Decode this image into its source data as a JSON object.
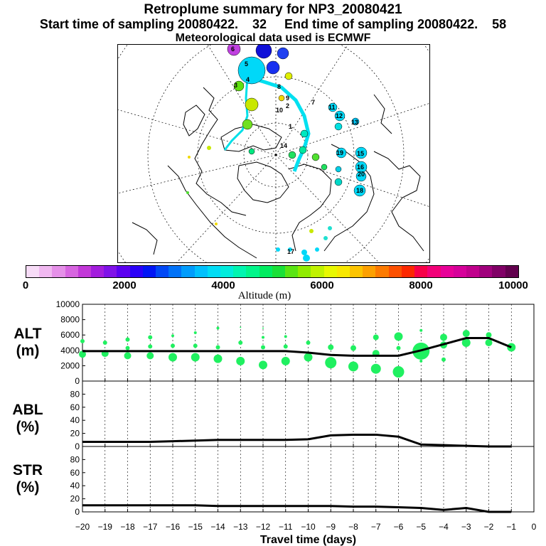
{
  "title": {
    "line1": "Retroplume summary for NP3_20080421",
    "line2": "Start time of sampling 20080422.    32     End time of sampling 20080422.    58",
    "line3": "Meteorological data used is ECMWF"
  },
  "colorbar": {
    "colors": [
      "#f7dcf7",
      "#f0b8f0",
      "#e590e8",
      "#d765e0",
      "#c238d8",
      "#a31ddd",
      "#8012e8",
      "#5c00f0",
      "#2a00f8",
      "#0015f5",
      "#0048f5",
      "#0072f8",
      "#009cfc",
      "#00c0fd",
      "#00dcf5",
      "#00ecdc",
      "#00f5b0",
      "#00f58a",
      "#00ec60",
      "#1ae038",
      "#5ae414",
      "#90ec00",
      "#c0f200",
      "#e8f800",
      "#f8e800",
      "#fcc400",
      "#fca000",
      "#fc7a00",
      "#fc5000",
      "#fc2800",
      "#f80048",
      "#f20078",
      "#e80098",
      "#d6009a",
      "#c0008c",
      "#a0007c",
      "#800066",
      "#62004e"
    ],
    "tick_labels": [
      "0",
      "2000",
      "4000",
      "6000",
      "8000",
      "10000"
    ],
    "label": "Altitude (m)"
  },
  "map": {
    "plume_labels": [
      "1",
      "2",
      "3",
      "4",
      "5",
      "6",
      "7",
      "8",
      "9",
      "10",
      "11",
      "12",
      "13",
      "14",
      "15",
      "16",
      "17",
      "18",
      "19",
      "20"
    ]
  },
  "chart_data": [
    {
      "type": "line",
      "panel": "ALT",
      "ylabel": "ALT\n(m)",
      "xlabel": "Travel time (days)",
      "x": [
        -20,
        -19,
        -18,
        -17,
        -16,
        -15,
        -14,
        -13,
        -12,
        -11,
        -10,
        -9,
        -8,
        -7,
        -6,
        -5,
        -4,
        -3,
        -2,
        -1
      ],
      "values": [
        3900,
        3900,
        3900,
        3900,
        3900,
        3900,
        3900,
        3900,
        3900,
        3900,
        3700,
        3400,
        3300,
        3300,
        3300,
        4000,
        4800,
        5600,
        5600,
        4400
      ],
      "xlim": [
        -20,
        0
      ],
      "ylim": [
        0,
        10000
      ],
      "yticks": [
        0,
        2000,
        4000,
        6000,
        8000,
        10000
      ],
      "xticks": [
        -20,
        -19,
        -18,
        -17,
        -16,
        -15,
        -14,
        -13,
        -12,
        -11,
        -10,
        -9,
        -8,
        -7,
        -6,
        -5,
        -4,
        -3,
        -2,
        -1,
        0
      ],
      "clusters": [
        {
          "x": -20,
          "y": 3500,
          "r": 5
        },
        {
          "x": -20,
          "y": 5200,
          "r": 3
        },
        {
          "x": -19,
          "y": 3600,
          "r": 5
        },
        {
          "x": -19,
          "y": 5000,
          "r": 3
        },
        {
          "x": -18,
          "y": 3300,
          "r": 5
        },
        {
          "x": -18,
          "y": 5400,
          "r": 3
        },
        {
          "x": -18,
          "y": 4300,
          "r": 3
        },
        {
          "x": -17,
          "y": 3300,
          "r": 5
        },
        {
          "x": -17,
          "y": 5700,
          "r": 3
        },
        {
          "x": -17,
          "y": 4500,
          "r": 3
        },
        {
          "x": -16,
          "y": 3100,
          "r": 6
        },
        {
          "x": -16,
          "y": 5900,
          "r": 2
        },
        {
          "x": -16,
          "y": 4600,
          "r": 3
        },
        {
          "x": -15,
          "y": 3100,
          "r": 6
        },
        {
          "x": -15,
          "y": 6300,
          "r": 2
        },
        {
          "x": -15,
          "y": 4600,
          "r": 3
        },
        {
          "x": -14,
          "y": 2900,
          "r": 6
        },
        {
          "x": -14,
          "y": 6900,
          "r": 2
        },
        {
          "x": -14,
          "y": 4400,
          "r": 3
        },
        {
          "x": -13,
          "y": 2600,
          "r": 6
        },
        {
          "x": -13,
          "y": 7000,
          "r": 1
        },
        {
          "x": -13,
          "y": 5000,
          "r": 3
        },
        {
          "x": -12,
          "y": 2100,
          "r": 6
        },
        {
          "x": -12,
          "y": 6900,
          "r": 1
        },
        {
          "x": -12,
          "y": 5700,
          "r": 2
        },
        {
          "x": -12,
          "y": 4400,
          "r": 3
        },
        {
          "x": -11,
          "y": 2600,
          "r": 6
        },
        {
          "x": -11,
          "y": 5800,
          "r": 2
        },
        {
          "x": -11,
          "y": 4500,
          "r": 3
        },
        {
          "x": -10,
          "y": 3100,
          "r": 6
        },
        {
          "x": -10,
          "y": 5000,
          "r": 3
        },
        {
          "x": -9,
          "y": 2400,
          "r": 8
        },
        {
          "x": -9,
          "y": 4400,
          "r": 4
        },
        {
          "x": -8,
          "y": 1900,
          "r": 7
        },
        {
          "x": -8,
          "y": 4300,
          "r": 4
        },
        {
          "x": -7,
          "y": 1600,
          "r": 7
        },
        {
          "x": -7,
          "y": 3600,
          "r": 5
        },
        {
          "x": -7,
          "y": 5700,
          "r": 4
        },
        {
          "x": -6,
          "y": 1200,
          "r": 8
        },
        {
          "x": -6,
          "y": 4300,
          "r": 3
        },
        {
          "x": -6,
          "y": 5800,
          "r": 6
        },
        {
          "x": -5,
          "y": 3900,
          "r": 12
        },
        {
          "x": -5,
          "y": 6600,
          "r": 2
        },
        {
          "x": -5,
          "y": 2600,
          "r": 2
        },
        {
          "x": -4,
          "y": 2800,
          "r": 3
        },
        {
          "x": -4,
          "y": 4700,
          "r": 5
        },
        {
          "x": -4,
          "y": 5700,
          "r": 5
        },
        {
          "x": -3,
          "y": 5000,
          "r": 6
        },
        {
          "x": -3,
          "y": 6200,
          "r": 5
        },
        {
          "x": -2,
          "y": 5000,
          "r": 5
        },
        {
          "x": -2,
          "y": 6000,
          "r": 4
        },
        {
          "x": -1,
          "y": 4400,
          "r": 6
        }
      ]
    },
    {
      "type": "line",
      "panel": "ABL",
      "ylabel": "ABL\n(%)",
      "x": [
        -20,
        -19,
        -18,
        -17,
        -16,
        -15,
        -14,
        -13,
        -12,
        -11,
        -10,
        -9,
        -8,
        -7,
        -6,
        -5,
        -4,
        -3,
        -2,
        -1
      ],
      "values": [
        7,
        7,
        7,
        7,
        8,
        9,
        10,
        10,
        10,
        10,
        11,
        17,
        18,
        18,
        15,
        3,
        2,
        1,
        0,
        0
      ],
      "ylim": [
        0,
        100
      ],
      "yticks": [
        0,
        20,
        40,
        60,
        80
      ]
    },
    {
      "type": "line",
      "panel": "STR",
      "ylabel": "STR\n(%)",
      "x": [
        -20,
        -19,
        -18,
        -17,
        -16,
        -15,
        -14,
        -13,
        -12,
        -11,
        -10,
        -9,
        -8,
        -7,
        -6,
        -5,
        -4,
        -3,
        -2,
        -1
      ],
      "values": [
        10,
        10,
        10,
        10,
        10,
        10,
        9,
        9,
        9,
        9,
        9,
        9,
        8,
        8,
        7,
        6,
        3,
        6,
        0,
        0
      ],
      "ylim": [
        0,
        100
      ],
      "yticks": [
        0,
        20,
        40,
        60,
        80
      ]
    }
  ]
}
